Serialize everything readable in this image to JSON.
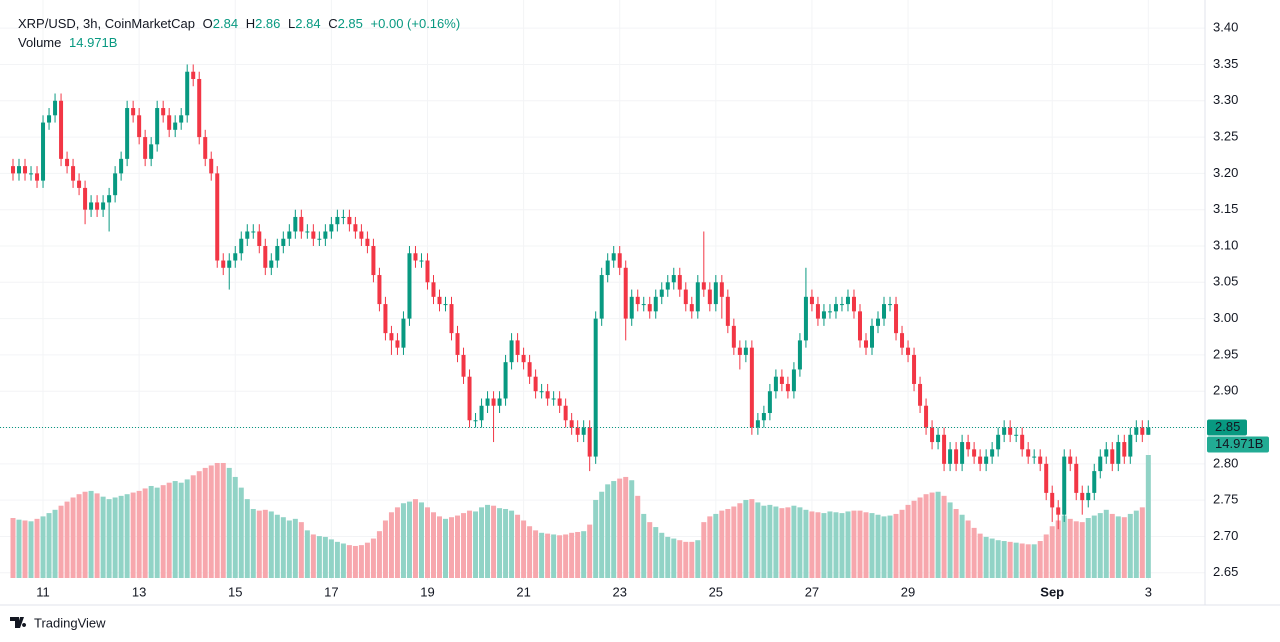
{
  "chart_data": {
    "type": "candlestick",
    "header": {
      "symbol": "XRP/USD, 3h, CoinMarketCap",
      "o": "O",
      "h": "H",
      "l": "L",
      "c": "C",
      "change": "+0.00 (+0.16%)",
      "volume_name": "Volume"
    },
    "volume_value_label": "14.971B",
    "brand": "TradingView",
    "up_color": "#089981",
    "down_color": "#f23645",
    "volume_up_color": "#91d3c6",
    "volume_down_color": "#f7a7ad",
    "grid": true,
    "ylim": [
      2.618,
      3.425
    ],
    "yticks": [
      2.65,
      {
        "value": 2.7,
        "label": "2.70"
      },
      2.75,
      {
        "value": 2.8,
        "label": "2.80"
      },
      2.85,
      {
        "value": 2.9,
        "label": "2.90"
      },
      2.95,
      {
        "value": 3,
        "label": "3.00"
      },
      3.05,
      {
        "value": 3.1,
        "label": "3.10"
      },
      3.15,
      {
        "value": 3.2,
        "label": "3.20"
      },
      3.25,
      {
        "value": 3.3,
        "label": "3.30"
      },
      3.35,
      {
        "value": 3.4,
        "label": "3.40"
      }
    ],
    "categories": [
      null,
      null,
      null,
      null,
      null,
      "11",
      null,
      null,
      null,
      null,
      null,
      null,
      null,
      null,
      null,
      null,
      null,
      null,
      null,
      null,
      null,
      "13",
      null,
      null,
      null,
      null,
      null,
      null,
      null,
      null,
      null,
      null,
      null,
      null,
      null,
      null,
      null,
      "15",
      null,
      null,
      null,
      null,
      null,
      null,
      null,
      null,
      null,
      null,
      null,
      null,
      null,
      null,
      null,
      "17",
      null,
      null,
      null,
      null,
      null,
      null,
      null,
      null,
      null,
      null,
      null,
      null,
      null,
      null,
      null,
      "19",
      null,
      null,
      null,
      null,
      null,
      null,
      null,
      null,
      null,
      null,
      null,
      null,
      null,
      null,
      null,
      "21",
      null,
      null,
      null,
      null,
      null,
      null,
      null,
      null,
      null,
      null,
      null,
      null,
      null,
      null,
      null,
      "23",
      null,
      null,
      null,
      null,
      null,
      null,
      null,
      null,
      null,
      null,
      null,
      null,
      null,
      null,
      null,
      "25",
      null,
      null,
      null,
      null,
      null,
      null,
      null,
      null,
      null,
      null,
      null,
      null,
      null,
      null,
      null,
      "27",
      null,
      null,
      null,
      null,
      null,
      null,
      null,
      null,
      null,
      null,
      null,
      null,
      null,
      null,
      null,
      "29",
      null,
      null,
      null,
      null,
      null,
      null,
      null,
      null,
      null,
      null,
      null,
      null,
      null,
      null,
      null,
      null,
      null,
      null,
      null,
      null,
      null,
      null,
      null,
      "Sep",
      null,
      null,
      null,
      null,
      null,
      null,
      null,
      null,
      null,
      null,
      null,
      null,
      null,
      null,
      null,
      "3"
    ],
    "ohlc": [
      [
        3.21,
        3.22,
        3.19,
        3.2
      ],
      [
        3.2,
        3.22,
        3.19,
        3.21
      ],
      [
        3.21,
        3.22,
        3.19,
        3.2
      ],
      [
        3.2,
        3.21,
        3.19,
        3.2
      ],
      [
        3.2,
        3.21,
        3.18,
        3.19
      ],
      [
        3.19,
        3.28,
        3.18,
        3.27
      ],
      [
        3.27,
        3.29,
        3.26,
        3.28
      ],
      [
        3.28,
        3.31,
        3.27,
        3.3
      ],
      [
        3.3,
        3.31,
        3.21,
        3.22
      ],
      [
        3.22,
        3.23,
        3.2,
        3.21
      ],
      [
        3.21,
        3.22,
        3.18,
        3.19
      ],
      [
        3.19,
        3.2,
        3.17,
        3.18
      ],
      [
        3.18,
        3.19,
        3.13,
        3.15
      ],
      [
        3.15,
        3.17,
        3.14,
        3.16
      ],
      [
        3.16,
        3.17,
        3.14,
        3.15
      ],
      [
        3.15,
        3.17,
        3.14,
        3.16
      ],
      [
        3.16,
        3.18,
        3.12,
        3.17
      ],
      [
        3.17,
        3.21,
        3.16,
        3.2
      ],
      [
        3.2,
        3.23,
        3.19,
        3.22
      ],
      [
        3.22,
        3.3,
        3.21,
        3.29
      ],
      [
        3.29,
        3.3,
        3.27,
        3.28
      ],
      [
        3.28,
        3.29,
        3.24,
        3.25
      ],
      [
        3.25,
        3.26,
        3.21,
        3.22
      ],
      [
        3.22,
        3.25,
        3.21,
        3.24
      ],
      [
        3.24,
        3.3,
        3.23,
        3.29
      ],
      [
        3.29,
        3.3,
        3.27,
        3.28
      ],
      [
        3.28,
        3.29,
        3.25,
        3.26
      ],
      [
        3.26,
        3.28,
        3.25,
        3.27
      ],
      [
        3.27,
        3.29,
        3.26,
        3.28
      ],
      [
        3.28,
        3.35,
        3.27,
        3.34
      ],
      [
        3.34,
        3.35,
        3.32,
        3.33
      ],
      [
        3.33,
        3.34,
        3.24,
        3.25
      ],
      [
        3.25,
        3.26,
        3.21,
        3.22
      ],
      [
        3.22,
        3.23,
        3.19,
        3.2
      ],
      [
        3.2,
        3.21,
        3.07,
        3.08
      ],
      [
        3.08,
        3.09,
        3.06,
        3.07
      ],
      [
        3.07,
        3.09,
        3.04,
        3.08
      ],
      [
        3.08,
        3.1,
        3.07,
        3.09
      ],
      [
        3.09,
        3.12,
        3.08,
        3.11
      ],
      [
        3.11,
        3.13,
        3.1,
        3.12
      ],
      [
        3.12,
        3.13,
        3.11,
        3.12
      ],
      [
        3.12,
        3.13,
        3.09,
        3.1
      ],
      [
        3.1,
        3.11,
        3.06,
        3.07
      ],
      [
        3.07,
        3.09,
        3.06,
        3.08
      ],
      [
        3.08,
        3.11,
        3.07,
        3.1
      ],
      [
        3.1,
        3.12,
        3.09,
        3.11
      ],
      [
        3.11,
        3.13,
        3.1,
        3.12
      ],
      [
        3.12,
        3.15,
        3.11,
        3.14
      ],
      [
        3.14,
        3.15,
        3.11,
        3.12
      ],
      [
        3.12,
        3.13,
        3.11,
        3.12
      ],
      [
        3.12,
        3.13,
        3.1,
        3.11
      ],
      [
        3.11,
        3.12,
        3.1,
        3.11
      ],
      [
        3.11,
        3.13,
        3.1,
        3.12
      ],
      [
        3.12,
        3.14,
        3.11,
        3.13
      ],
      [
        3.13,
        3.15,
        3.12,
        3.14
      ],
      [
        3.14,
        3.15,
        3.13,
        3.14
      ],
      [
        3.14,
        3.15,
        3.12,
        3.13
      ],
      [
        3.13,
        3.14,
        3.11,
        3.12
      ],
      [
        3.12,
        3.13,
        3.1,
        3.11
      ],
      [
        3.11,
        3.12,
        3.09,
        3.1
      ],
      [
        3.1,
        3.11,
        3.05,
        3.06
      ],
      [
        3.06,
        3.07,
        3.01,
        3.02
      ],
      [
        3.02,
        3.03,
        2.97,
        2.98
      ],
      [
        2.98,
        2.99,
        2.95,
        2.97
      ],
      [
        2.97,
        2.98,
        2.95,
        2.96
      ],
      [
        2.96,
        3.01,
        2.95,
        3.0
      ],
      [
        3.0,
        3.1,
        2.99,
        3.09
      ],
      [
        3.09,
        3.1,
        3.07,
        3.08
      ],
      [
        3.08,
        3.09,
        3.07,
        3.08
      ],
      [
        3.08,
        3.09,
        3.04,
        3.05
      ],
      [
        3.05,
        3.06,
        3.02,
        3.03
      ],
      [
        3.03,
        3.04,
        3.01,
        3.02
      ],
      [
        3.02,
        3.03,
        3.01,
        3.02
      ],
      [
        3.02,
        3.03,
        2.97,
        2.98
      ],
      [
        2.98,
        2.99,
        2.94,
        2.95
      ],
      [
        2.95,
        2.96,
        2.91,
        2.92
      ],
      [
        2.92,
        2.93,
        2.85,
        2.86
      ],
      [
        2.86,
        2.87,
        2.85,
        2.86
      ],
      [
        2.86,
        2.89,
        2.85,
        2.88
      ],
      [
        2.88,
        2.9,
        2.87,
        2.89
      ],
      [
        2.89,
        2.9,
        2.83,
        2.88
      ],
      [
        2.88,
        2.9,
        2.87,
        2.89
      ],
      [
        2.89,
        2.95,
        2.88,
        2.94
      ],
      [
        2.94,
        2.98,
        2.93,
        2.97
      ],
      [
        2.97,
        2.98,
        2.94,
        2.95
      ],
      [
        2.95,
        2.96,
        2.93,
        2.94
      ],
      [
        2.94,
        2.95,
        2.91,
        2.92
      ],
      [
        2.92,
        2.93,
        2.89,
        2.9
      ],
      [
        2.9,
        2.91,
        2.89,
        2.9
      ],
      [
        2.9,
        2.91,
        2.88,
        2.89
      ],
      [
        2.89,
        2.9,
        2.88,
        2.89
      ],
      [
        2.89,
        2.9,
        2.87,
        2.88
      ],
      [
        2.88,
        2.89,
        2.85,
        2.86
      ],
      [
        2.86,
        2.87,
        2.84,
        2.85
      ],
      [
        2.85,
        2.86,
        2.83,
        2.84
      ],
      [
        2.84,
        2.86,
        2.83,
        2.85
      ],
      [
        2.85,
        2.86,
        2.79,
        2.81
      ],
      [
        2.81,
        3.01,
        2.8,
        3.0
      ],
      [
        3.0,
        3.07,
        2.99,
        3.06
      ],
      [
        3.06,
        3.09,
        3.05,
        3.08
      ],
      [
        3.08,
        3.1,
        3.07,
        3.09
      ],
      [
        3.09,
        3.1,
        3.06,
        3.07
      ],
      [
        3.07,
        3.08,
        2.97,
        3.0
      ],
      [
        3.0,
        3.04,
        2.99,
        3.03
      ],
      [
        3.03,
        3.04,
        3.01,
        3.02
      ],
      [
        3.02,
        3.03,
        3.01,
        3.02
      ],
      [
        3.02,
        3.03,
        3.0,
        3.01
      ],
      [
        3.01,
        3.04,
        3.0,
        3.03
      ],
      [
        3.03,
        3.05,
        3.02,
        3.04
      ],
      [
        3.04,
        3.06,
        3.03,
        3.05
      ],
      [
        3.05,
        3.07,
        3.04,
        3.06
      ],
      [
        3.06,
        3.07,
        3.03,
        3.04
      ],
      [
        3.04,
        3.05,
        3.01,
        3.02
      ],
      [
        3.02,
        3.03,
        3.0,
        3.01
      ],
      [
        3.01,
        3.06,
        3.0,
        3.05
      ],
      [
        3.05,
        3.12,
        3.03,
        3.04
      ],
      [
        3.04,
        3.05,
        3.01,
        3.02
      ],
      [
        3.02,
        3.06,
        3.01,
        3.05
      ],
      [
        3.05,
        3.06,
        3.0,
        3.03
      ],
      [
        3.03,
        3.04,
        2.98,
        2.99
      ],
      [
        2.99,
        3.0,
        2.95,
        2.96
      ],
      [
        2.96,
        2.97,
        2.93,
        2.95
      ],
      [
        2.95,
        2.97,
        2.94,
        2.96
      ],
      [
        2.96,
        2.97,
        2.84,
        2.85
      ],
      [
        2.85,
        2.87,
        2.84,
        2.86
      ],
      [
        2.86,
        2.88,
        2.85,
        2.87
      ],
      [
        2.87,
        2.91,
        2.86,
        2.9
      ],
      [
        2.9,
        2.93,
        2.89,
        2.92
      ],
      [
        2.92,
        2.93,
        2.9,
        2.91
      ],
      [
        2.91,
        2.92,
        2.89,
        2.9
      ],
      [
        2.9,
        2.94,
        2.89,
        2.93
      ],
      [
        2.93,
        2.98,
        2.92,
        2.97
      ],
      [
        2.97,
        3.07,
        2.96,
        3.03
      ],
      [
        3.03,
        3.04,
        3.01,
        3.02
      ],
      [
        3.02,
        3.03,
        2.99,
        3.0
      ],
      [
        3.0,
        3.02,
        2.99,
        3.01
      ],
      [
        3.01,
        3.02,
        3.0,
        3.01
      ],
      [
        3.01,
        3.03,
        3.0,
        3.02
      ],
      [
        3.02,
        3.03,
        3.01,
        3.02
      ],
      [
        3.02,
        3.04,
        3.01,
        3.03
      ],
      [
        3.03,
        3.04,
        3.0,
        3.01
      ],
      [
        3.01,
        3.02,
        2.96,
        2.97
      ],
      [
        2.97,
        2.98,
        2.95,
        2.96
      ],
      [
        2.96,
        3.0,
        2.95,
        2.99
      ],
      [
        2.99,
        3.01,
        2.98,
        3.0
      ],
      [
        3.0,
        3.03,
        2.99,
        3.02
      ],
      [
        3.02,
        3.03,
        3.01,
        3.02
      ],
      [
        3.02,
        3.03,
        2.97,
        2.98
      ],
      [
        2.98,
        2.99,
        2.95,
        2.96
      ],
      [
        2.96,
        2.97,
        2.94,
        2.95
      ],
      [
        2.95,
        2.96,
        2.9,
        2.91
      ],
      [
        2.91,
        2.92,
        2.87,
        2.88
      ],
      [
        2.88,
        2.89,
        2.84,
        2.85
      ],
      [
        2.85,
        2.86,
        2.82,
        2.83
      ],
      [
        2.83,
        2.85,
        2.82,
        2.84
      ],
      [
        2.84,
        2.85,
        2.79,
        2.8
      ],
      [
        2.8,
        2.83,
        2.79,
        2.82
      ],
      [
        2.82,
        2.83,
        2.79,
        2.8
      ],
      [
        2.8,
        2.84,
        2.79,
        2.83
      ],
      [
        2.83,
        2.84,
        2.81,
        2.82
      ],
      [
        2.82,
        2.83,
        2.8,
        2.81
      ],
      [
        2.81,
        2.82,
        2.79,
        2.8
      ],
      [
        2.8,
        2.82,
        2.79,
        2.81
      ],
      [
        2.81,
        2.83,
        2.8,
        2.82
      ],
      [
        2.82,
        2.85,
        2.81,
        2.84
      ],
      [
        2.84,
        2.86,
        2.83,
        2.85
      ],
      [
        2.85,
        2.86,
        2.83,
        2.84
      ],
      [
        2.84,
        2.85,
        2.83,
        2.84
      ],
      [
        2.84,
        2.85,
        2.81,
        2.82
      ],
      [
        2.82,
        2.83,
        2.8,
        2.81
      ],
      [
        2.81,
        2.82,
        2.8,
        2.81
      ],
      [
        2.81,
        2.82,
        2.79,
        2.8
      ],
      [
        2.8,
        2.81,
        2.75,
        2.76
      ],
      [
        2.76,
        2.77,
        2.72,
        2.74
      ],
      [
        2.74,
        2.75,
        2.71,
        2.73
      ],
      [
        2.73,
        2.82,
        2.72,
        2.81
      ],
      [
        2.81,
        2.82,
        2.79,
        2.8
      ],
      [
        2.8,
        2.81,
        2.75,
        2.76
      ],
      [
        2.76,
        2.77,
        2.73,
        2.75
      ],
      [
        2.75,
        2.77,
        2.74,
        2.76
      ],
      [
        2.76,
        2.8,
        2.75,
        2.79
      ],
      [
        2.79,
        2.82,
        2.78,
        2.81
      ],
      [
        2.81,
        2.83,
        2.8,
        2.82
      ],
      [
        2.82,
        2.83,
        2.79,
        2.8
      ],
      [
        2.8,
        2.84,
        2.79,
        2.83
      ],
      [
        2.83,
        2.84,
        2.8,
        2.81
      ],
      [
        2.81,
        2.85,
        2.8,
        2.84
      ],
      [
        2.84,
        2.86,
        2.83,
        2.85
      ],
      [
        2.85,
        2.86,
        2.83,
        2.84
      ],
      [
        2.84,
        2.86,
        2.84,
        2.85
      ]
    ],
    "volumes": [
      7.3,
      7.1,
      7.0,
      6.9,
      7.2,
      7.5,
      7.9,
      8.3,
      8.8,
      9.3,
      9.8,
      10.2,
      10.5,
      10.6,
      10.3,
      9.9,
      9.6,
      9.8,
      10.0,
      10.2,
      10.4,
      10.6,
      10.9,
      11.2,
      11.0,
      11.3,
      11.6,
      11.8,
      11.6,
      12.0,
      12.5,
      13.0,
      13.4,
      13.7,
      14.0,
      14.0,
      13.4,
      12.3,
      11.0,
      9.6,
      8.4,
      8.2,
      8.3,
      8.1,
      7.7,
      7.4,
      7.0,
      7.2,
      6.8,
      5.8,
      5.3,
      5.1,
      5.0,
      4.7,
      4.4,
      4.2,
      4.0,
      3.9,
      4.0,
      4.3,
      4.8,
      5.7,
      7.0,
      8.0,
      8.6,
      9.1,
      9.3,
      9.6,
      9.2,
      8.6,
      8.0,
      7.5,
      7.2,
      7.4,
      7.6,
      7.9,
      8.2,
      8.1,
      8.6,
      8.9,
      8.8,
      8.5,
      8.4,
      8.2,
      7.7,
      7.0,
      6.3,
      5.8,
      5.5,
      5.4,
      5.3,
      5.2,
      5.3,
      5.5,
      5.6,
      5.7,
      6.5,
      9.5,
      10.5,
      11.4,
      11.8,
      12.1,
      12.3,
      11.9,
      10.0,
      7.8,
      6.8,
      6.2,
      5.5,
      5.0,
      4.8,
      4.6,
      4.4,
      4.4,
      4.6,
      6.8,
      7.5,
      7.8,
      8.2,
      8.4,
      8.7,
      9.1,
      9.5,
      9.6,
      9.2,
      8.8,
      8.9,
      8.7,
      8.5,
      8.6,
      8.8,
      8.6,
      8.3,
      8.1,
      8.0,
      7.9,
      8.1,
      8.0,
      7.9,
      8.1,
      8.2,
      8.2,
      8.0,
      7.9,
      7.7,
      7.5,
      7.6,
      7.8,
      8.3,
      8.9,
      9.4,
      9.8,
      10.2,
      10.4,
      10.5,
      10.0,
      9.2,
      8.4,
      7.7,
      7.0,
      6.1,
      5.4,
      5.0,
      4.8,
      4.6,
      4.5,
      4.4,
      4.3,
      4.2,
      4.1,
      4.1,
      4.5,
      5.3,
      6.3,
      7.0,
      7.6,
      7.2,
      6.9,
      6.8,
      7.3,
      7.6,
      7.9,
      8.3,
      7.8,
      7.5,
      7.4,
      7.8,
      8.2,
      8.6,
      14.971
    ]
  }
}
